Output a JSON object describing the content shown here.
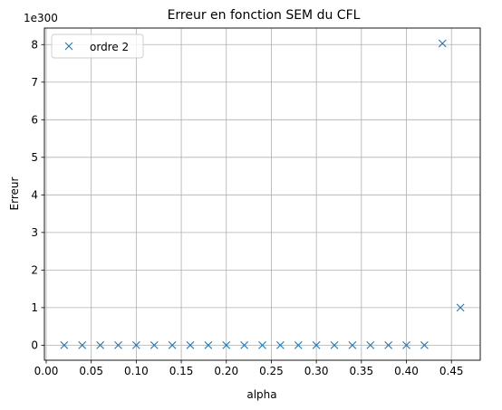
{
  "chart_data": {
    "type": "scatter",
    "title": "Erreur en fonction SEM  du CFL",
    "xlabel": "alpha",
    "ylabel": "Erreur",
    "y_offset_text": "1e300",
    "xlim": [
      -0.002,
      0.482
    ],
    "ylim": [
      -0.4,
      8.44
    ],
    "xticks": [
      "0.00",
      "0.05",
      "0.10",
      "0.15",
      "0.20",
      "0.25",
      "0.30",
      "0.35",
      "0.40",
      "0.45"
    ],
    "yticks": [
      "0",
      "1",
      "2",
      "3",
      "4",
      "5",
      "6",
      "7",
      "8"
    ],
    "grid": true,
    "legend": {
      "position": "top-left",
      "entries": [
        "ordre 2"
      ]
    },
    "series": [
      {
        "name": "ordre 2",
        "marker": "x",
        "color": "#1f77b4",
        "x": [
          0.02,
          0.04,
          0.06,
          0.08,
          0.1,
          0.12,
          0.14,
          0.16,
          0.18,
          0.2,
          0.22,
          0.24,
          0.26,
          0.28,
          0.3,
          0.32,
          0.34,
          0.36,
          0.38,
          0.4,
          0.42,
          0.44,
          0.46
        ],
        "y": [
          0,
          0,
          0,
          0,
          0,
          0,
          0,
          0,
          0,
          0,
          0,
          0,
          0,
          0,
          0,
          0,
          0,
          0,
          0,
          0,
          0,
          8.03,
          1.0
        ]
      }
    ]
  }
}
